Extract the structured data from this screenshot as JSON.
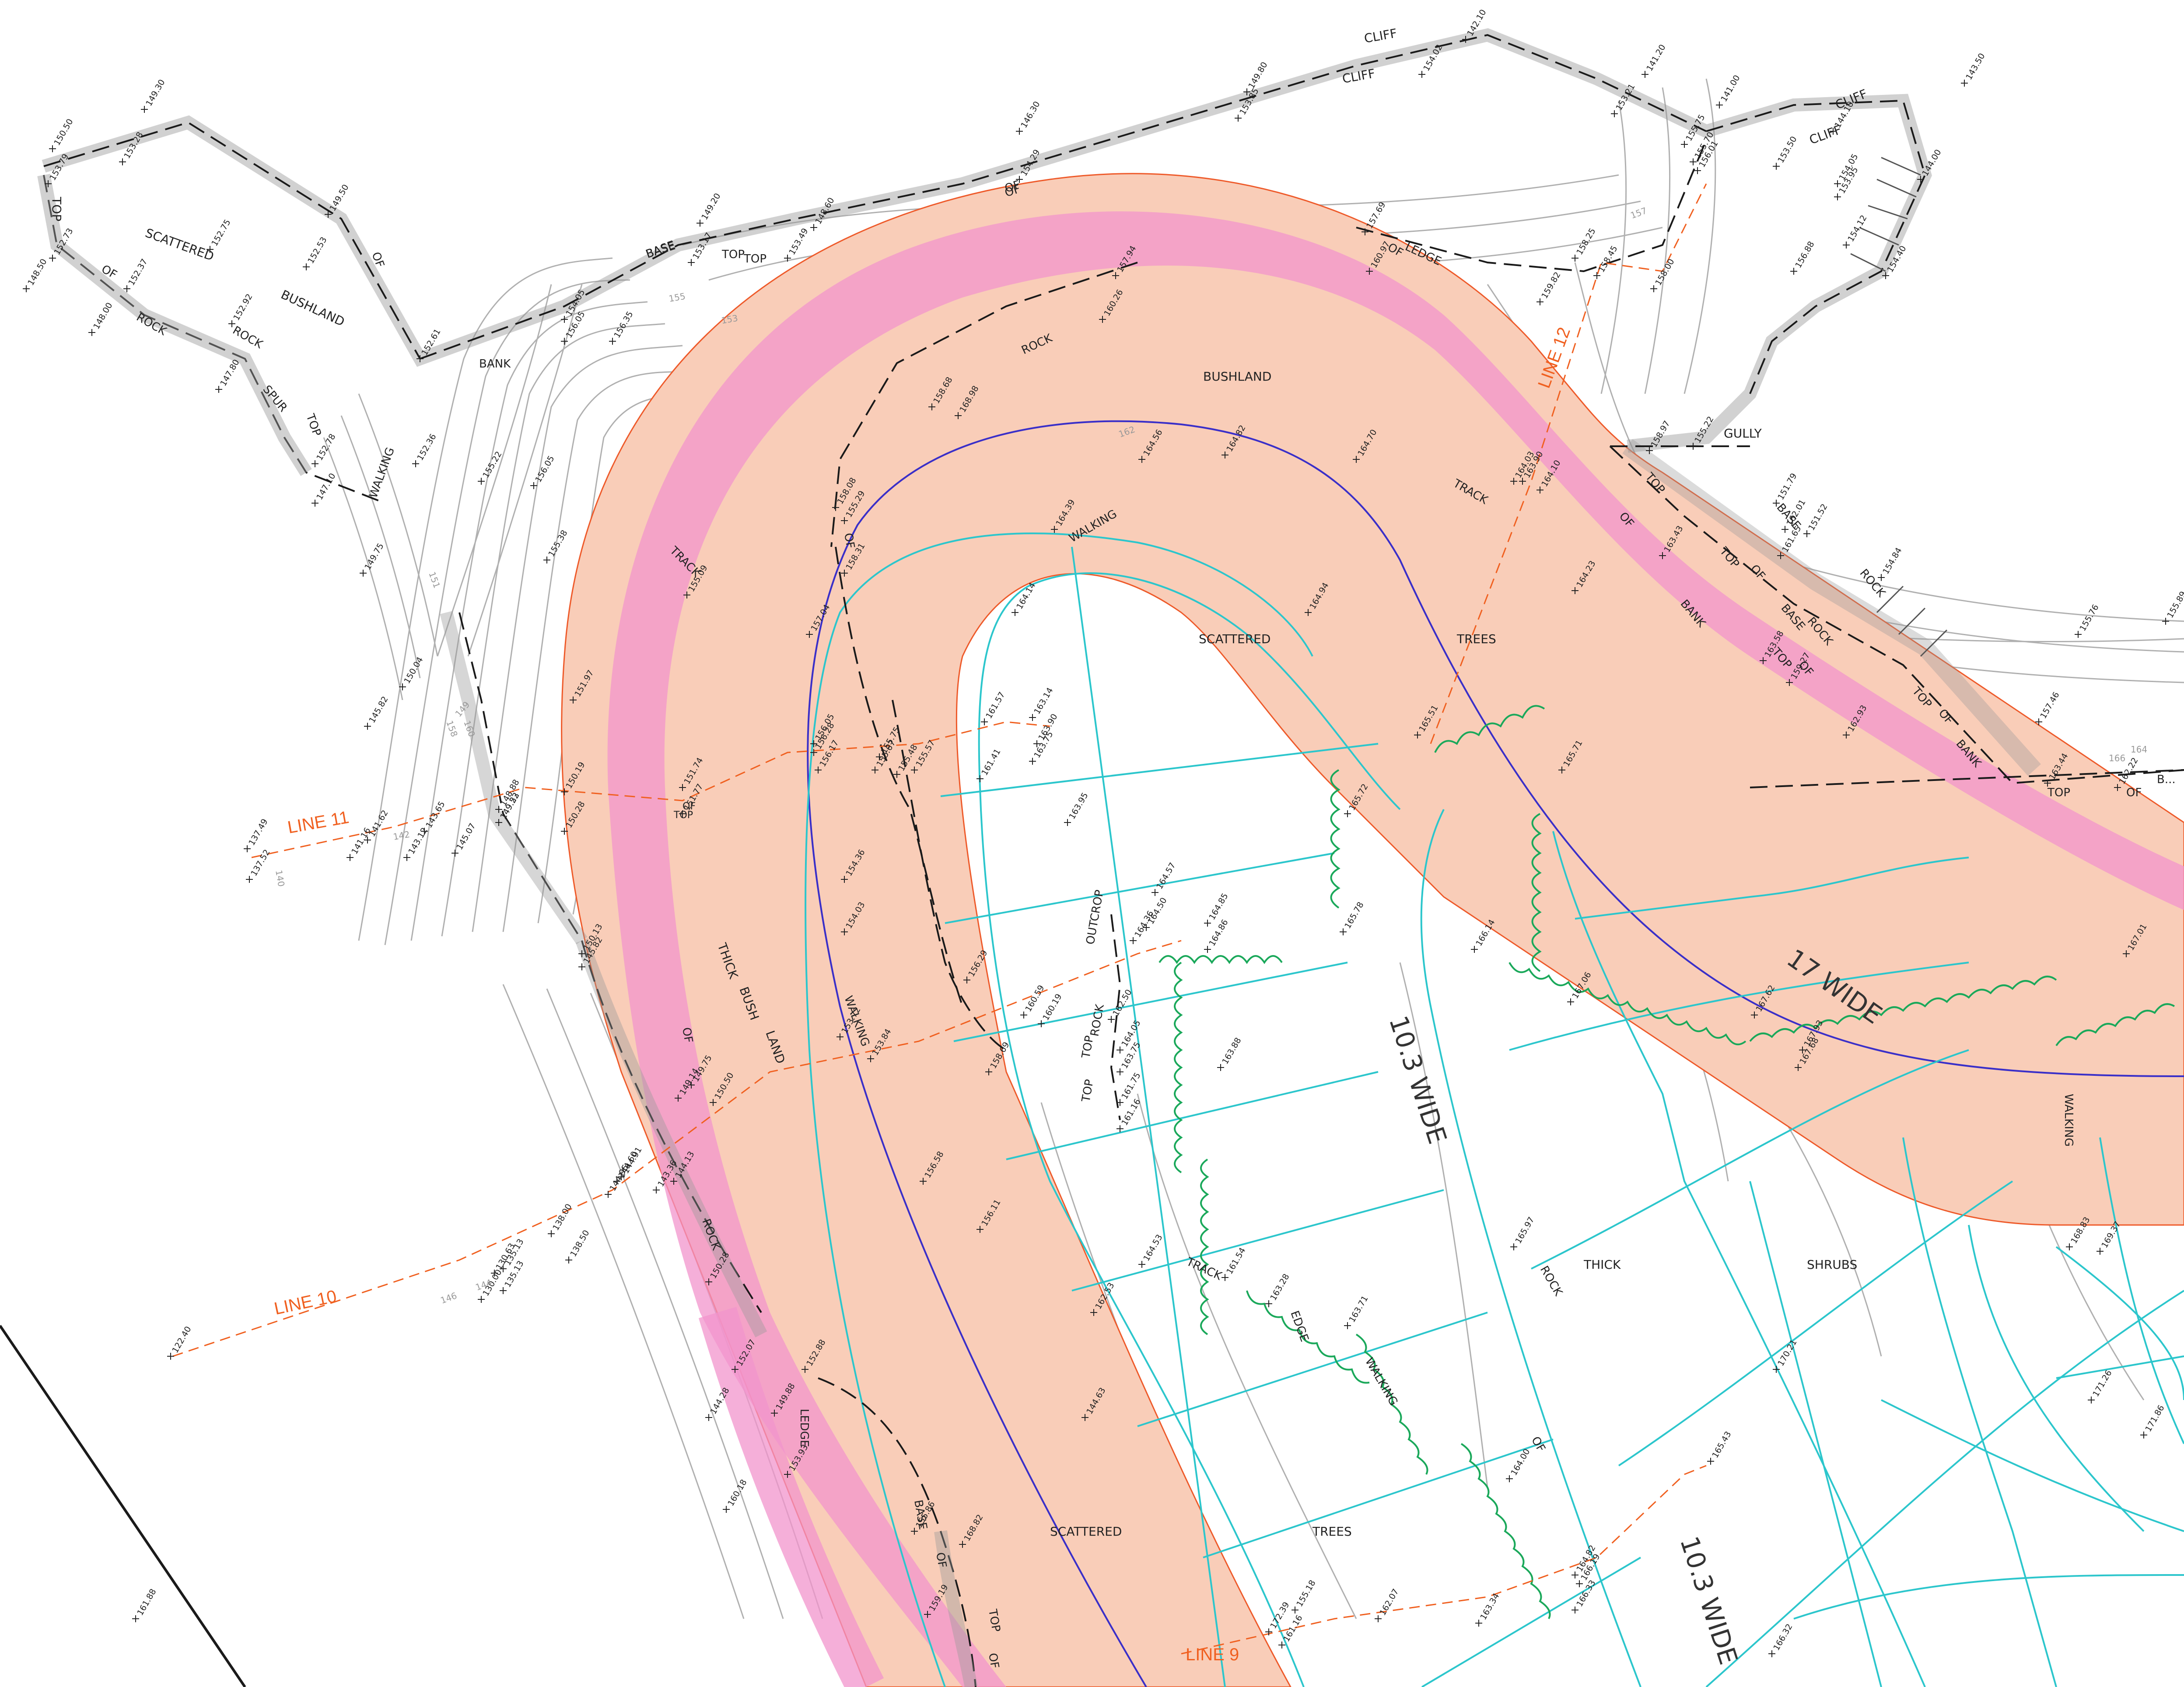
{
  "colors": {
    "corridor_fill": "#f9cdb8",
    "corridor_edge": "#ee5a2a",
    "pink_band": "#f294cc",
    "centreline": "#3a2fc8",
    "cyan": "#2cc6cc",
    "trees_edge": "#1aa85a",
    "contour": "#b0b0b0",
    "survey_line": "#f06020",
    "black": "#1a1a1a"
  },
  "survey_lines": [
    {
      "id": "line-9",
      "label": "LINE 9"
    },
    {
      "id": "line-10",
      "label": "LINE 10"
    },
    {
      "id": "line-11",
      "label": "LINE 11"
    },
    {
      "id": "line-12",
      "label": "LINE 12"
    }
  ],
  "road_widths": {
    "road_a": "10.3 WIDE",
    "road_b": "10.3 WIDE",
    "corridor": "17 WIDE"
  },
  "labels": [
    {
      "text": "CLIFF"
    },
    {
      "text": "CLIFF"
    },
    {
      "text": "CLIFF"
    },
    {
      "text": "CLIFF"
    },
    {
      "text": "OF"
    },
    {
      "text": "OF"
    },
    {
      "text": "BASE"
    },
    {
      "text": "TOP"
    },
    {
      "text": "TOP"
    },
    {
      "text": "SCATTERED"
    },
    {
      "text": "BUSHLAND"
    },
    {
      "text": "OF"
    },
    {
      "text": "OF"
    },
    {
      "text": "ROCK"
    },
    {
      "text": "ROCK"
    },
    {
      "text": "SPUR"
    },
    {
      "text": "TOP"
    },
    {
      "text": "OF"
    },
    {
      "text": "BANK"
    },
    {
      "text": "BASE"
    },
    {
      "text": "TOP"
    },
    {
      "text": "LEDGE"
    },
    {
      "text": "ROCK"
    },
    {
      "text": "BUSHLAND"
    },
    {
      "text": "WALKING"
    },
    {
      "text": "TRACK"
    },
    {
      "text": "WALKING"
    },
    {
      "text": "TRACK"
    },
    {
      "text": "GULLY"
    },
    {
      "text": "TOP"
    },
    {
      "text": "BASE"
    },
    {
      "text": "TOP"
    },
    {
      "text": "OF"
    },
    {
      "text": "BANK"
    },
    {
      "text": "BASE"
    },
    {
      "text": "OF"
    },
    {
      "text": "ROCK"
    },
    {
      "text": "TOP"
    },
    {
      "text": "OF"
    },
    {
      "text": "ROCK"
    },
    {
      "text": "TOP"
    },
    {
      "text": "OF"
    },
    {
      "text": "BANK"
    },
    {
      "text": "TOP"
    },
    {
      "text": "OF"
    },
    {
      "text": "B..."
    },
    {
      "text": "SCATTERED"
    },
    {
      "text": "TREES"
    },
    {
      "text": "THICK"
    },
    {
      "text": "BUSH"
    },
    {
      "text": "LAND"
    },
    {
      "text": "WALKING"
    },
    {
      "text": "OF"
    },
    {
      "text": "OF"
    },
    {
      "text": "ROCK"
    },
    {
      "text": "TOP"
    },
    {
      "text": "OUTCROP"
    },
    {
      "text": "ROCK"
    },
    {
      "text": "TOP"
    },
    {
      "text": "TRACK"
    },
    {
      "text": "EDGE"
    },
    {
      "text": "WALKING"
    },
    {
      "text": "OF"
    },
    {
      "text": "ROCK"
    },
    {
      "text": "LEDGE"
    },
    {
      "text": "BASE"
    },
    {
      "text": "OF"
    },
    {
      "text": "TOP"
    },
    {
      "text": "OF"
    },
    {
      "text": "SCATTERED"
    },
    {
      "text": "TREES"
    },
    {
      "text": "THICK"
    },
    {
      "text": "SHRUBS"
    },
    {
      "text": "WALKING"
    },
    {
      "text": "TOP"
    },
    {
      "text": "OF"
    }
  ],
  "spot_heights": [
    "150.50",
    "149.30",
    "153.79",
    "153.28",
    "152.73",
    "152.37",
    "148.50",
    "148.00",
    "147.80",
    "152.75",
    "152.53",
    "149.50",
    "152.92",
    "152.78",
    "147.10",
    "152.61",
    "154.05",
    "156.05",
    "156.35",
    "149.20",
    "153.17",
    "153.49",
    "148.60",
    "146.30",
    "154.29",
    "149.80",
    "153.85",
    "142.10",
    "154.02",
    "153.21",
    "141.20",
    "141.00",
    "155.75",
    "156.01",
    "155.70",
    "143.50",
    "144.10",
    "153.50",
    "154.05",
    "153.95",
    "144.00",
    "154.12",
    "156.88",
    "154.40",
    "157.69",
    "157.94",
    "160.97",
    "158.25",
    "158.45",
    "159.82",
    "158.00",
    "160.26",
    "158.68",
    "168.98",
    "152.36",
    "155.22",
    "156.05",
    "155.38",
    "149.75",
    "150.04",
    "145.82",
    "151.97",
    "155.09",
    "158.08",
    "155.29",
    "157.04",
    "158.31",
    "164.56",
    "164.82",
    "164.70",
    "164.03",
    "163.90",
    "164.10",
    "158.97",
    "155.22",
    "151.79",
    "151.52",
    "162.01",
    "161.65",
    "154.84",
    "155.76",
    "155.89",
    "164.39",
    "164.14",
    "164.94",
    "165.51",
    "164.23",
    "163.43",
    "163.58",
    "159.27",
    "162.93",
    "157.46",
    "163.44",
    "162.22",
    "150.19",
    "150.28",
    "149.52",
    "148.88",
    "149.23",
    "145.07",
    "143.65",
    "143.12",
    "141.62",
    "141.16",
    "137.49",
    "137.52",
    "151.74",
    "151.77",
    "156.05",
    "156.28",
    "156.17",
    "155.75",
    "155.67",
    "155.48",
    "155.57",
    "161.57",
    "163.14",
    "163.90",
    "163.75",
    "161.41",
    "163.95",
    "165.72",
    "165.71",
    "154.36",
    "154.03",
    "150.13",
    "145.82",
    "164.57",
    "164.50",
    "164.36",
    "164.85",
    "164.86",
    "165.78",
    "166.14",
    "167.06",
    "167.62",
    "167.01",
    "156.29",
    "160.59",
    "160.19",
    "153.72",
    "153.84",
    "158.69",
    "162.50",
    "164.05",
    "163.75",
    "161.75",
    "161.16",
    "163.88",
    "167.93",
    "167.68",
    "150.50",
    "149.75",
    "149.14",
    "144.91",
    "144.60",
    "144.95",
    "144.13",
    "143.36",
    "156.58",
    "156.11",
    "165.97",
    "168.83",
    "169.37",
    "170.21",
    "171.26",
    "171.86",
    "138.00",
    "135.13",
    "138.50",
    "130.63",
    "130.00",
    "135.13",
    "122.40",
    "150.28",
    "152.07",
    "144.28",
    "152.88",
    "149.88",
    "153.93",
    "155.86",
    "160.18",
    "144.63",
    "162.53",
    "164.53",
    "161.54",
    "163.28",
    "163.71",
    "164.00",
    "165.43",
    "168.82",
    "159.19",
    "155.18",
    "162.07",
    "163.34",
    "164.82",
    "166.19",
    "166.33",
    "166.32",
    "172.39",
    "161.16",
    "161.88"
  ],
  "contour_labels": [
    "157",
    "155",
    "153",
    "151",
    "149",
    "162",
    "160",
    "158",
    "164",
    "166",
    "142",
    "140",
    "146",
    "144"
  ]
}
